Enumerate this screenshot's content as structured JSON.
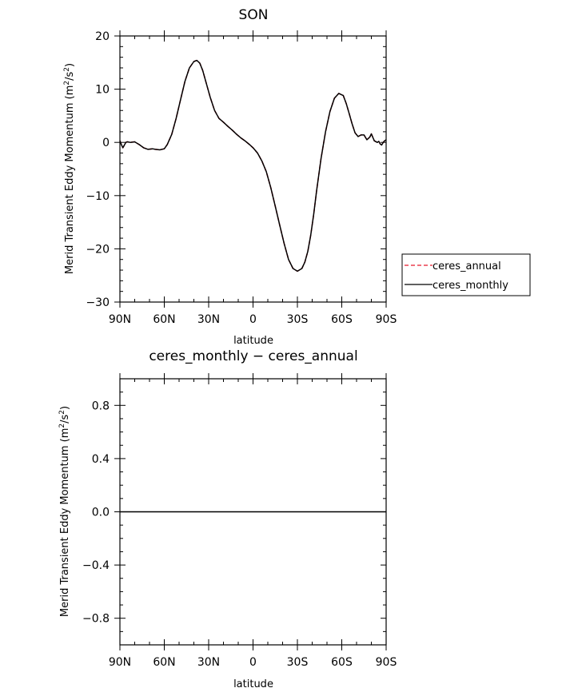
{
  "chart_data": [
    {
      "type": "line",
      "title": "SON",
      "xlabel": "latitude",
      "ylabel": "Merid Transient Eddy Momentum (m²/s²)",
      "ylabel_main": "Merid Transient Eddy Momentum (m",
      "ylabel_sup": "2",
      "ylabel_mid": "/s",
      "ylabel_sup2": "2",
      "ylabel_end": ")",
      "xlim": [
        90,
        -90
      ],
      "ylim": [
        -30,
        20
      ],
      "xticks": [
        90,
        60,
        30,
        0,
        -30,
        -60,
        -90
      ],
      "xtick_labels": [
        "90N",
        "60N",
        "30N",
        "0",
        "30S",
        "60S",
        "90S"
      ],
      "yticks": [
        20,
        10,
        0,
        -10,
        -20,
        -30
      ],
      "ytick_labels": [
        "20",
        "10",
        "0",
        "−10",
        "−20",
        "−30"
      ],
      "legend_position": "right",
      "series": [
        {
          "name": "ceres_annual",
          "color": "#e8192c",
          "dash": "dashed",
          "x": [
            90,
            89,
            88,
            87,
            86,
            85,
            83,
            80,
            77,
            74,
            71,
            68,
            66,
            63,
            60,
            58,
            55,
            52,
            49,
            46,
            43,
            40,
            38,
            36,
            34,
            32,
            29,
            26,
            23,
            20,
            17,
            14,
            11,
            8,
            5,
            2,
            0,
            -3,
            -6,
            -9,
            -12,
            -15,
            -18,
            -21,
            -24,
            -27,
            -30,
            -33,
            -35,
            -37,
            -39,
            -41,
            -43,
            -46,
            -49,
            -52,
            -55,
            -58,
            -61,
            -63,
            -65,
            -67,
            -69,
            -71,
            -73,
            -75,
            -77,
            -79,
            -80,
            -82,
            -84,
            -85,
            -86,
            -87,
            -88,
            -89,
            -90
          ],
          "y": [
            0.3,
            -0.4,
            -1.0,
            -0.5,
            0.0,
            0.1,
            0.0,
            0.1,
            -0.4,
            -1.0,
            -1.3,
            -1.2,
            -1.3,
            -1.4,
            -1.2,
            -0.4,
            1.5,
            4.5,
            8.0,
            11.5,
            14.0,
            15.2,
            15.4,
            14.9,
            13.5,
            11.5,
            8.5,
            6.0,
            4.5,
            3.8,
            3.0,
            2.3,
            1.5,
            0.8,
            0.2,
            -0.5,
            -1.0,
            -2.0,
            -3.5,
            -5.5,
            -8.5,
            -12.0,
            -15.5,
            -19.0,
            -22.0,
            -23.7,
            -24.2,
            -23.7,
            -22.5,
            -20.5,
            -17.5,
            -13.5,
            -9.0,
            -3.0,
            2.0,
            5.8,
            8.3,
            9.2,
            8.8,
            7.3,
            5.4,
            3.5,
            1.8,
            1.1,
            1.4,
            1.4,
            0.5,
            1.0,
            1.6,
            0.3,
            0.0,
            0.2,
            -0.3,
            -0.5,
            0.0,
            0.3,
            0.5
          ]
        },
        {
          "name": "ceres_monthly",
          "color": "#000000",
          "dash": "solid",
          "x": [
            90,
            89,
            88,
            87,
            86,
            85,
            83,
            80,
            77,
            74,
            71,
            68,
            66,
            63,
            60,
            58,
            55,
            52,
            49,
            46,
            43,
            40,
            38,
            36,
            34,
            32,
            29,
            26,
            23,
            20,
            17,
            14,
            11,
            8,
            5,
            2,
            0,
            -3,
            -6,
            -9,
            -12,
            -15,
            -18,
            -21,
            -24,
            -27,
            -30,
            -33,
            -35,
            -37,
            -39,
            -41,
            -43,
            -46,
            -49,
            -52,
            -55,
            -58,
            -61,
            -63,
            -65,
            -67,
            -69,
            -71,
            -73,
            -75,
            -77,
            -79,
            -80,
            -82,
            -84,
            -85,
            -86,
            -87,
            -88,
            -89,
            -90
          ],
          "y": [
            0.3,
            -0.4,
            -1.0,
            -0.5,
            0.0,
            0.1,
            0.0,
            0.1,
            -0.4,
            -1.0,
            -1.3,
            -1.2,
            -1.3,
            -1.4,
            -1.2,
            -0.4,
            1.5,
            4.5,
            8.0,
            11.5,
            14.0,
            15.2,
            15.4,
            14.9,
            13.5,
            11.5,
            8.5,
            6.0,
            4.5,
            3.8,
            3.0,
            2.3,
            1.5,
            0.8,
            0.2,
            -0.5,
            -1.0,
            -2.0,
            -3.5,
            -5.5,
            -8.5,
            -12.0,
            -15.5,
            -19.0,
            -22.0,
            -23.7,
            -24.2,
            -23.7,
            -22.5,
            -20.5,
            -17.5,
            -13.5,
            -9.0,
            -3.0,
            2.0,
            5.8,
            8.3,
            9.2,
            8.8,
            7.3,
            5.4,
            3.5,
            1.8,
            1.1,
            1.4,
            1.4,
            0.5,
            1.0,
            1.6,
            0.3,
            0.0,
            0.2,
            -0.3,
            -0.5,
            0.0,
            0.3,
            0.5
          ]
        }
      ]
    },
    {
      "type": "line",
      "title": "ceres_monthly − ceres_annual",
      "xlabel": "latitude",
      "ylabel": "Merid Transient Eddy Momentum (m²/s²)",
      "ylabel_main": "Merid Transient Eddy Momentum (m",
      "ylabel_sup": "2",
      "ylabel_mid": "/s",
      "ylabel_sup2": "2",
      "ylabel_end": ")",
      "xlim": [
        90,
        -90
      ],
      "ylim": [
        -1.0,
        1.0
      ],
      "xticks": [
        90,
        60,
        30,
        0,
        -30,
        -60,
        -90
      ],
      "xtick_labels": [
        "90N",
        "60N",
        "30N",
        "0",
        "30S",
        "60S",
        "90S"
      ],
      "yticks": [
        0.8,
        0.4,
        0.0,
        -0.4,
        -0.8
      ],
      "ytick_labels": [
        "0.8",
        "0.4",
        "0.0",
        "−0.4",
        "−0.8"
      ],
      "series": [
        {
          "color": "#000000",
          "dash": "solid",
          "x": [
            90,
            -90
          ],
          "y": [
            0.0,
            0.0
          ]
        }
      ]
    }
  ]
}
